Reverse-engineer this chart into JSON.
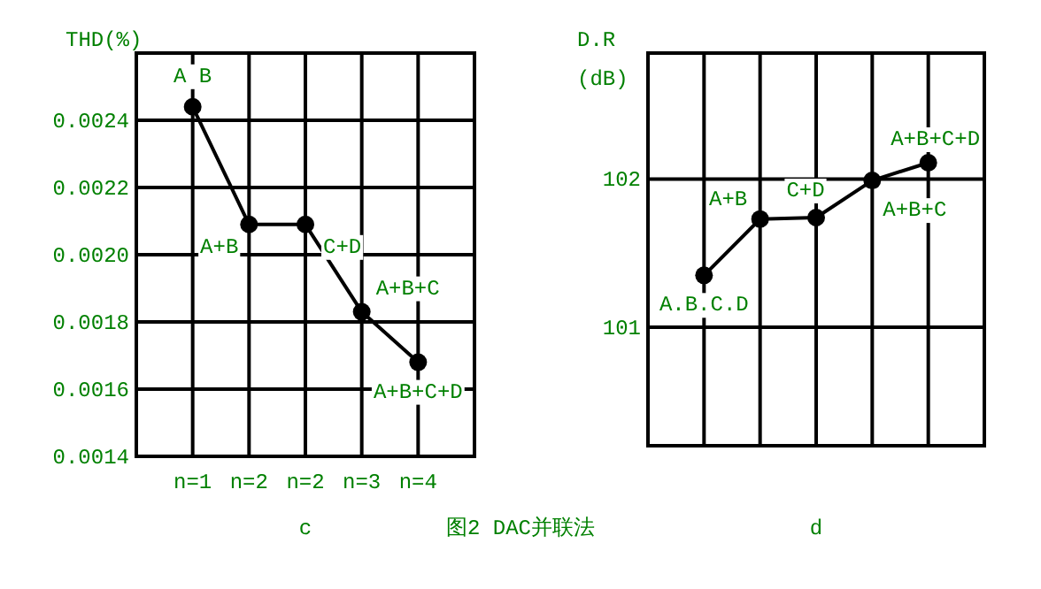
{
  "chart_data": [
    {
      "type": "line",
      "ylabel": "THD(%)",
      "xlabel": "c",
      "categories": [
        "n=1",
        "n=2",
        "n=2",
        "n=3",
        "n=4"
      ],
      "values": [
        0.00244,
        0.00209,
        0.00209,
        0.00183,
        0.00168
      ],
      "color": "#000000",
      "marker": "circle",
      "line_style": "solid",
      "grid": true,
      "ylim": [
        0.0014,
        0.0026
      ],
      "yticks": [
        {
          "value": 0.0014,
          "label": "0.0014"
        },
        {
          "value": 0.0016,
          "label": "0.0016"
        },
        {
          "value": 0.0018,
          "label": "0.0018"
        },
        {
          "value": 0.002,
          "label": "0.0020"
        },
        {
          "value": 0.0022,
          "label": "0.0022"
        },
        {
          "value": 0.0024,
          "label": "0.0024"
        }
      ],
      "annotations": [
        "A  B",
        "A+B",
        "C+D",
        "A+B+C",
        "A+B+C+D",
        "图2  DAC并联法"
      ]
    },
    {
      "type": "line",
      "ylabel": "D.R\n(dB)",
      "xlabel": "d",
      "categories": [
        null,
        null,
        null,
        null,
        null
      ],
      "values": [
        101.35,
        101.73,
        101.74,
        101.99,
        102.11
      ],
      "color": "#000000",
      "marker": "circle",
      "line_style": "solid",
      "grid": true,
      "ylim": [
        100.2,
        102.85
      ],
      "yticks": [
        101,
        102
      ],
      "annotations": [
        "A.B.C.D",
        "A+B",
        "C+D",
        "A+B+C",
        "A+B+C+D"
      ]
    }
  ]
}
